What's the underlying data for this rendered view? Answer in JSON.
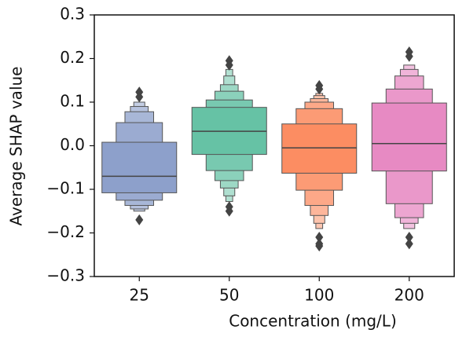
{
  "chart_data": {
    "type": "boxen",
    "xlabel": "Concentration (mg/L)",
    "ylabel": "Average SHAP value",
    "categories": [
      "25",
      "50",
      "100",
      "200"
    ],
    "boxes": [
      {
        "color": "#8da0cb",
        "median": -0.07,
        "levels": [
          [
            -0.108,
            0.008
          ],
          [
            -0.125,
            0.053
          ],
          [
            -0.137,
            0.078
          ],
          [
            -0.145,
            0.09
          ],
          [
            -0.15,
            0.1
          ]
        ],
        "outliers": [
          0.123,
          0.112,
          -0.17
        ]
      },
      {
        "color": "#66c2a5",
        "median": 0.033,
        "levels": [
          [
            -0.02,
            0.088
          ],
          [
            -0.057,
            0.105
          ],
          [
            -0.08,
            0.125
          ],
          [
            -0.097,
            0.14
          ],
          [
            -0.115,
            0.16
          ],
          [
            -0.128,
            0.175
          ]
        ],
        "outliers": [
          0.195,
          0.185,
          -0.14,
          -0.15
        ]
      },
      {
        "color": "#fc8d62",
        "median": -0.005,
        "levels": [
          [
            -0.063,
            0.05
          ],
          [
            -0.102,
            0.085
          ],
          [
            -0.137,
            0.1
          ],
          [
            -0.16,
            0.108
          ],
          [
            -0.178,
            0.115
          ],
          [
            -0.19,
            0.12
          ]
        ],
        "outliers": [
          0.138,
          0.13,
          -0.21,
          -0.225,
          -0.23
        ]
      },
      {
        "color": "#e78ac3",
        "median": 0.005,
        "levels": [
          [
            -0.058,
            0.098
          ],
          [
            -0.133,
            0.13
          ],
          [
            -0.165,
            0.16
          ],
          [
            -0.178,
            0.175
          ],
          [
            -0.19,
            0.185
          ]
        ],
        "outliers": [
          0.205,
          0.215,
          -0.21,
          -0.225
        ]
      }
    ],
    "ylim": [
      -0.3,
      0.3
    ],
    "yticks": [
      {
        "value": -0.3,
        "label": "−0.3"
      },
      {
        "value": -0.2,
        "label": "−0.2"
      },
      {
        "value": -0.1,
        "label": "−0.1"
      },
      {
        "value": 0,
        "label": "0.0"
      },
      0.1,
      0.2,
      0.3
    ]
  }
}
